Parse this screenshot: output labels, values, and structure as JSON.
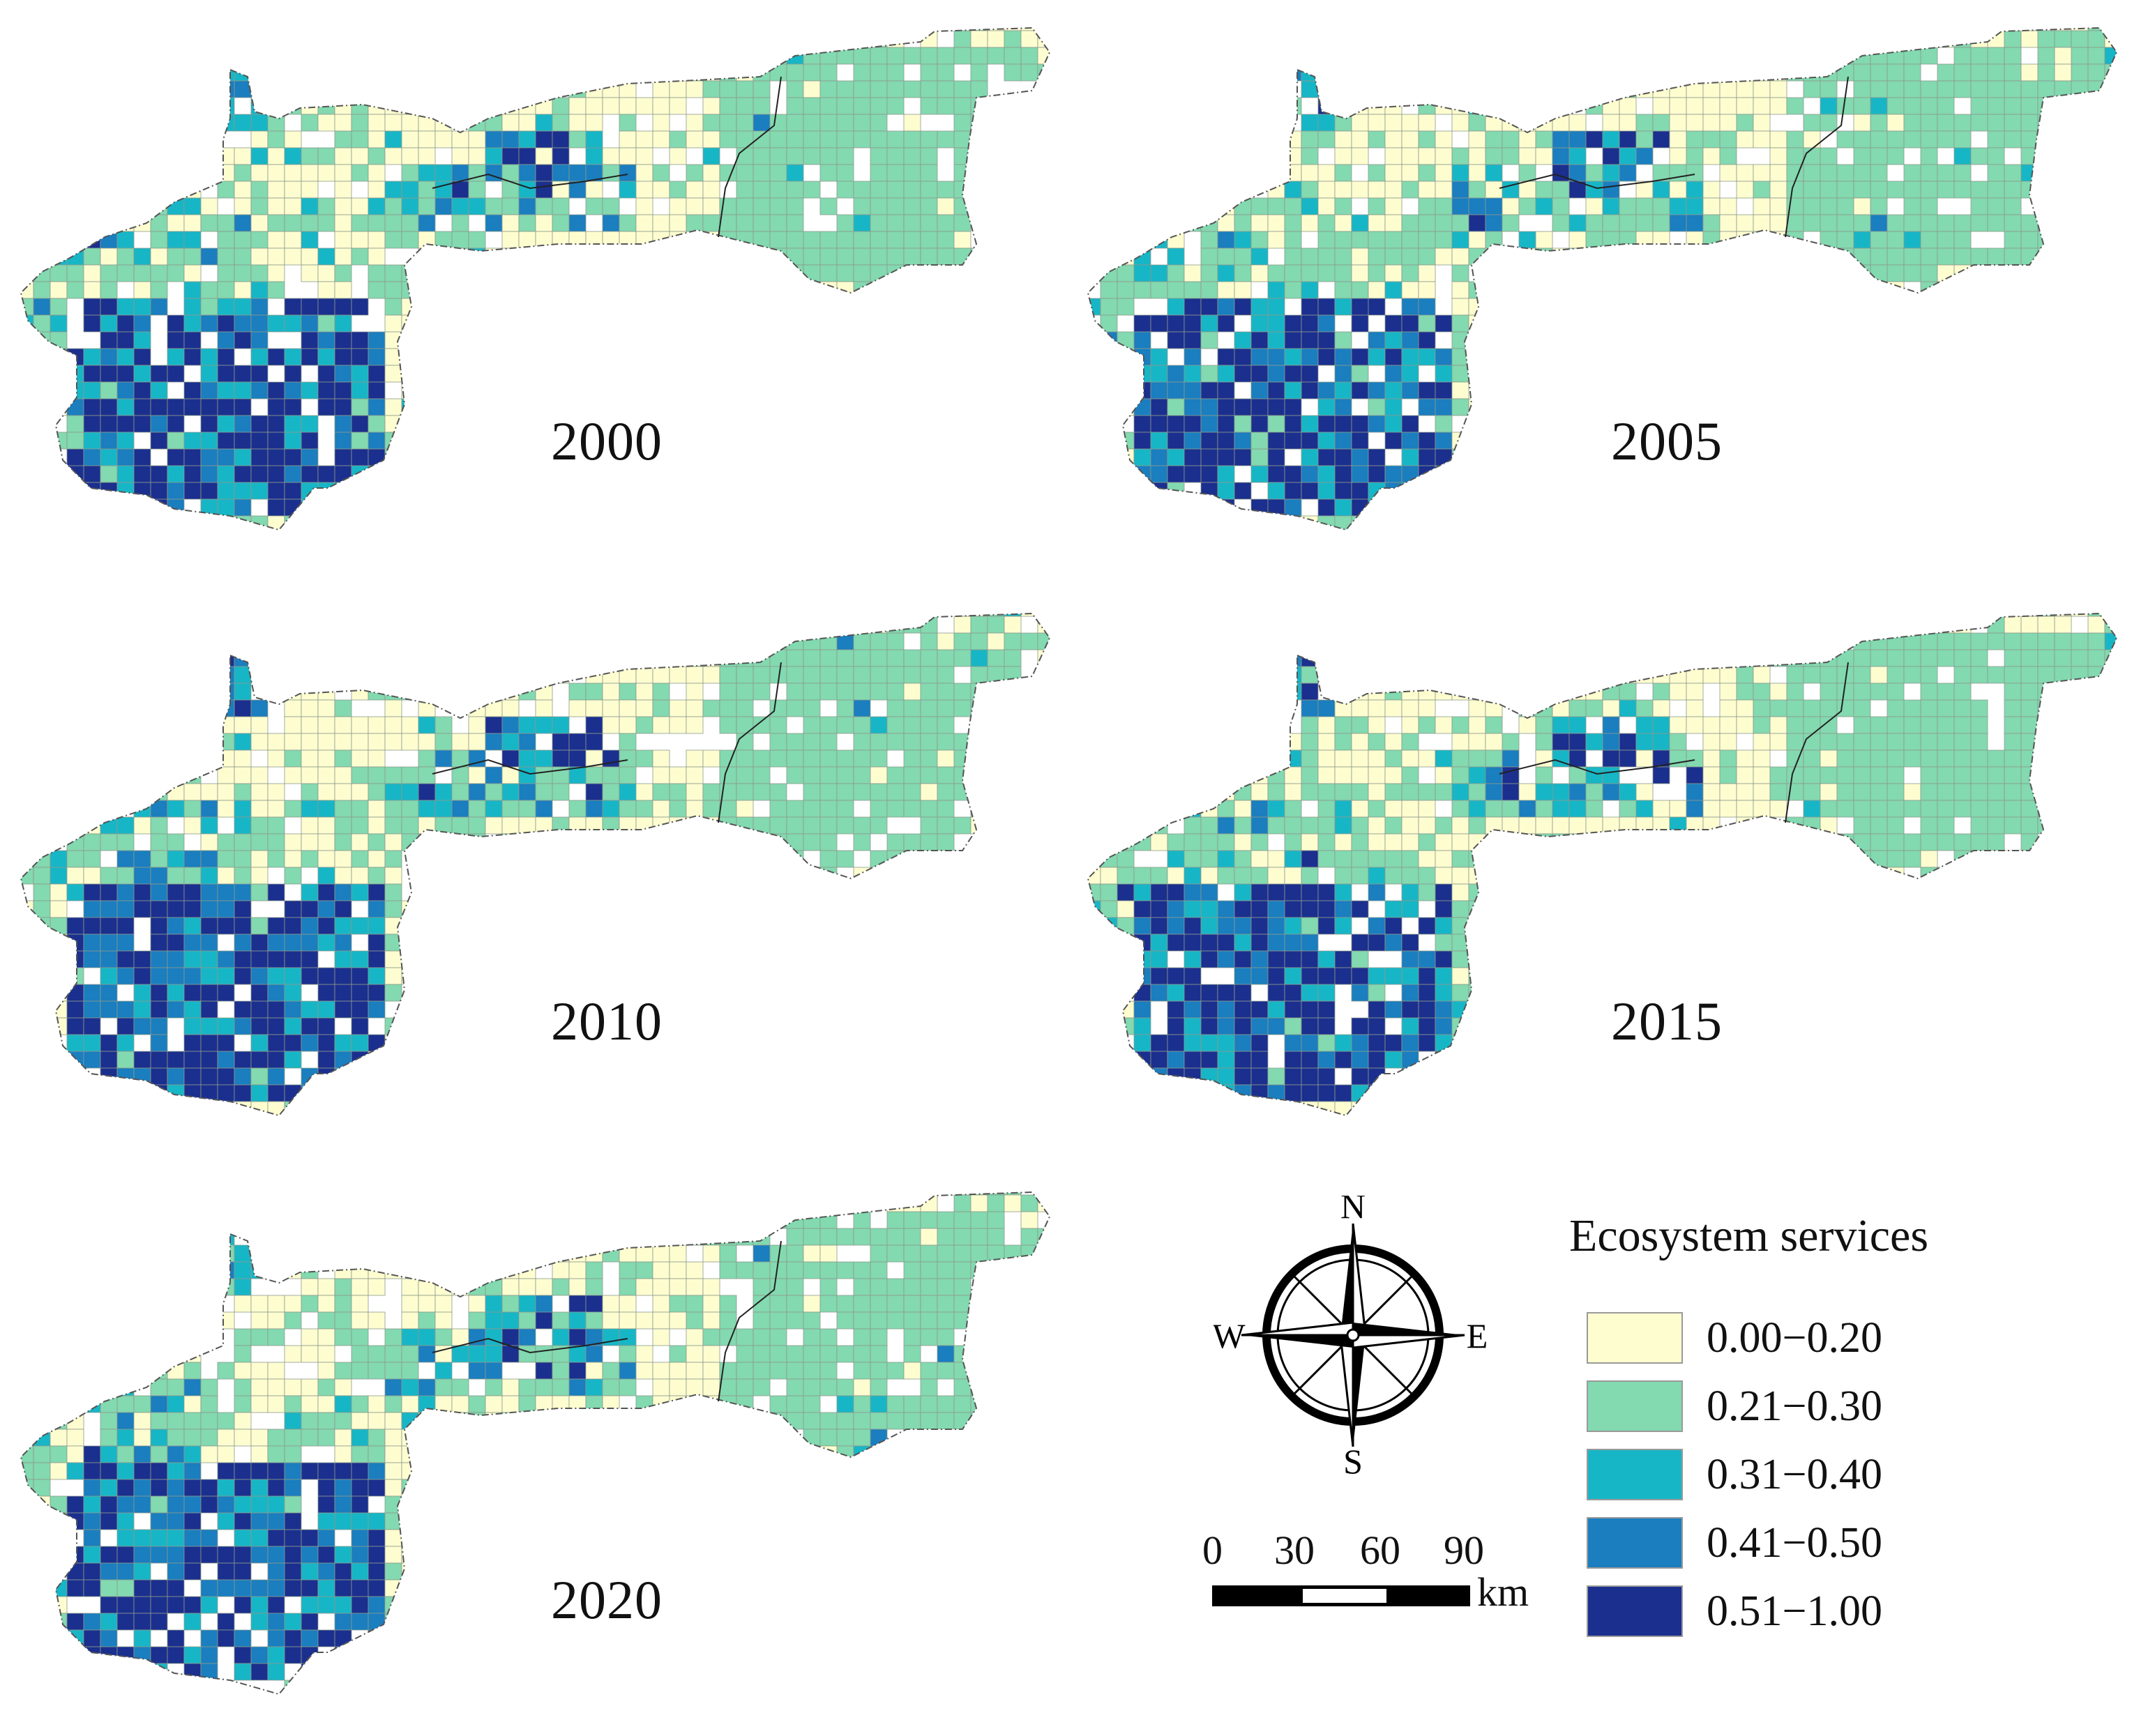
{
  "panels": [
    {
      "year": "2000"
    },
    {
      "year": "2005"
    },
    {
      "year": "2010"
    },
    {
      "year": "2015"
    },
    {
      "year": "2020"
    }
  ],
  "legend": {
    "title": "Ecosystem services",
    "items": [
      {
        "label": "0.00−0.20",
        "color": "#fefdd0"
      },
      {
        "label": "0.21−0.30",
        "color": "#83d9b0"
      },
      {
        "label": "0.31−0.40",
        "color": "#17b6c6"
      },
      {
        "label": "0.41−0.50",
        "color": "#1a7ebf"
      },
      {
        "label": "0.51−1.00",
        "color": "#1b2f8e"
      }
    ]
  },
  "compass": {
    "n": "N",
    "s": "S",
    "e": "E",
    "w": "W"
  },
  "scale": {
    "ticks": [
      "0",
      "30",
      "60",
      "90"
    ],
    "unit": "km"
  }
}
